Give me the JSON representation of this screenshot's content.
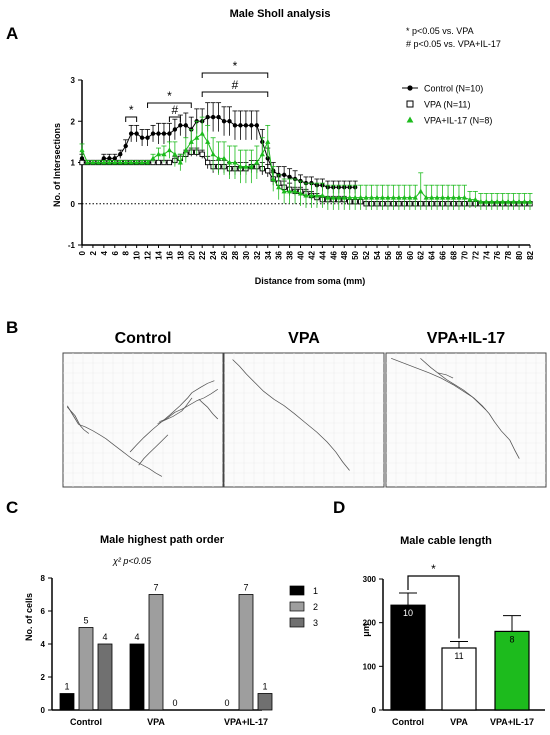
{
  "panels": {
    "a": "A",
    "b": "B",
    "c": "C",
    "d": "D"
  },
  "sholl": {
    "notes": [
      "* p<0.05 vs. VPA",
      "# p<0.05 vs. VPA+IL-17"
    ],
    "sig_star": "*",
    "sig_hash": "#"
  },
  "traces": {
    "labels": [
      "Control",
      "VPA",
      "VPA+IL-17"
    ]
  },
  "colors": {
    "control": "#000000",
    "vpa": "#ffffff",
    "il17": "#1dbb1d",
    "order1": "#000000",
    "order2": "#9e9e9e",
    "order3": "#707070"
  },
  "chart_data": [
    {
      "type": "line",
      "title": "Male Sholl analysis",
      "xlabel": "Distance from soma (mm)",
      "ylabel": "No. of Intersections",
      "ylim": [
        -1,
        3
      ],
      "yticks": [
        -1,
        0,
        1,
        2,
        3
      ],
      "xlim": [
        0,
        82
      ],
      "xticks": [
        0,
        2,
        4,
        6,
        8,
        10,
        12,
        14,
        16,
        18,
        20,
        22,
        24,
        26,
        28,
        30,
        32,
        34,
        36,
        38,
        40,
        42,
        44,
        46,
        48,
        50,
        52,
        54,
        56,
        58,
        60,
        62,
        64,
        66,
        68,
        70,
        72,
        74,
        76,
        78,
        80,
        82
      ],
      "legend_position": "top-right",
      "series": [
        {
          "name": "Control (N=10)",
          "marker": "filled-circle",
          "x": [
            0,
            1,
            2,
            3,
            4,
            5,
            6,
            7,
            8,
            9,
            10,
            11,
            12,
            13,
            14,
            15,
            16,
            17,
            18,
            19,
            20,
            21,
            22,
            23,
            24,
            25,
            26,
            27,
            28,
            29,
            30,
            31,
            32,
            33,
            34,
            35,
            36,
            37,
            38,
            39,
            40,
            41,
            42,
            43,
            44,
            45,
            46,
            47,
            48,
            49,
            50
          ],
          "y": [
            1.1,
            1.0,
            1.0,
            1.0,
            1.1,
            1.1,
            1.1,
            1.2,
            1.4,
            1.7,
            1.7,
            1.6,
            1.6,
            1.7,
            1.7,
            1.7,
            1.7,
            1.8,
            1.9,
            1.9,
            1.8,
            2.0,
            2.0,
            2.1,
            2.1,
            2.1,
            2.0,
            2.0,
            1.9,
            1.9,
            1.9,
            1.9,
            1.9,
            1.5,
            1.1,
            0.8,
            0.7,
            0.7,
            0.65,
            0.6,
            0.55,
            0.5,
            0.5,
            0.45,
            0.45,
            0.4,
            0.4,
            0.4,
            0.4,
            0.4,
            0.4
          ],
          "err": [
            0.1,
            0.05,
            0.05,
            0.05,
            0.1,
            0.1,
            0.1,
            0.1,
            0.15,
            0.2,
            0.2,
            0.2,
            0.2,
            0.2,
            0.25,
            0.25,
            0.25,
            0.25,
            0.25,
            0.3,
            0.3,
            0.3,
            0.3,
            0.35,
            0.35,
            0.35,
            0.35,
            0.35,
            0.35,
            0.35,
            0.35,
            0.35,
            0.35,
            0.3,
            0.25,
            0.2,
            0.2,
            0.2,
            0.2,
            0.2,
            0.15,
            0.15,
            0.15,
            0.15,
            0.15,
            0.15,
            0.15,
            0.15,
            0.15,
            0.15,
            0.15
          ]
        },
        {
          "name": "VPA (N=11)",
          "marker": "open-square",
          "x": [
            0,
            1,
            2,
            3,
            4,
            5,
            6,
            7,
            8,
            9,
            10,
            11,
            12,
            13,
            14,
            15,
            16,
            17,
            18,
            19,
            20,
            21,
            22,
            23,
            24,
            25,
            26,
            27,
            28,
            29,
            30,
            31,
            32,
            33,
            34,
            35,
            36,
            37,
            38,
            39,
            40,
            41,
            42,
            43,
            44,
            45,
            46,
            47,
            48,
            49,
            50,
            51,
            52,
            53,
            54,
            55,
            56,
            57,
            58,
            59,
            60,
            61,
            62,
            63,
            64,
            65,
            66,
            67,
            68,
            69,
            70,
            71,
            72,
            73,
            74,
            75,
            76,
            77,
            78,
            79,
            80,
            81,
            82
          ],
          "y": [
            1.0,
            1.0,
            1.0,
            1.0,
            1.0,
            1.0,
            1.0,
            1.0,
            1.0,
            1.0,
            1.0,
            1.0,
            1.0,
            1.0,
            1.0,
            1.0,
            1.0,
            1.05,
            1.1,
            1.2,
            1.25,
            1.25,
            1.2,
            1.0,
            0.9,
            0.9,
            0.9,
            0.85,
            0.85,
            0.85,
            0.85,
            0.9,
            0.9,
            0.85,
            0.8,
            0.6,
            0.5,
            0.4,
            0.35,
            0.3,
            0.3,
            0.25,
            0.2,
            0.15,
            0.1,
            0.1,
            0.1,
            0.1,
            0.1,
            0.05,
            0.05,
            0.05,
            0.0,
            0.0,
            0.0,
            0.0,
            0.0,
            0.0,
            0.0,
            0.0,
            0.0,
            0.0,
            0.0,
            0.0,
            0.0,
            0.0,
            0.0,
            0.0,
            0.0,
            0.0,
            0.0,
            0.0,
            0.0,
            0.0,
            0.0,
            0.0,
            0.0,
            0.0,
            0.0,
            0.0,
            0.0,
            0.0,
            0.0
          ],
          "err": [
            0.05,
            0.05,
            0.05,
            0.05,
            0.05,
            0.05,
            0.05,
            0.05,
            0.05,
            0.05,
            0.05,
            0.05,
            0.05,
            0.05,
            0.05,
            0.05,
            0.05,
            0.1,
            0.1,
            0.1,
            0.1,
            0.1,
            0.1,
            0.15,
            0.15,
            0.15,
            0.15,
            0.15,
            0.15,
            0.15,
            0.15,
            0.15,
            0.15,
            0.15,
            0.15,
            0.15,
            0.15,
            0.15,
            0.15,
            0.1,
            0.1,
            0.1,
            0.1,
            0.1,
            0.08,
            0.08,
            0.08,
            0.08,
            0.08,
            0.05,
            0.05,
            0.05,
            0.0,
            0.0,
            0.0,
            0.0,
            0.0,
            0.0,
            0.0,
            0.0,
            0.0,
            0.0,
            0.0,
            0.0,
            0.0,
            0.0,
            0.0,
            0.0,
            0.0,
            0.0,
            0.0,
            0.0,
            0.0,
            0.0,
            0.0,
            0.0,
            0.0,
            0.0,
            0.0,
            0.0,
            0.0,
            0.0,
            0.0
          ]
        },
        {
          "name": "VPA+IL-17 (N=8)",
          "marker": "filled-triangle",
          "x": [
            0,
            1,
            2,
            3,
            4,
            5,
            6,
            7,
            8,
            9,
            10,
            11,
            12,
            13,
            14,
            15,
            16,
            17,
            18,
            19,
            20,
            21,
            22,
            23,
            24,
            25,
            26,
            27,
            28,
            29,
            30,
            31,
            32,
            33,
            34,
            35,
            36,
            37,
            38,
            39,
            40,
            41,
            42,
            43,
            44,
            45,
            46,
            47,
            48,
            49,
            50,
            51,
            52,
            53,
            54,
            55,
            56,
            57,
            58,
            59,
            60,
            61,
            62,
            63,
            64,
            65,
            66,
            67,
            68,
            69,
            70,
            71,
            72,
            73,
            74,
            75,
            76,
            77,
            78,
            79,
            80,
            81,
            82
          ],
          "y": [
            1.3,
            1.0,
            1.0,
            1.0,
            1.0,
            1.0,
            1.0,
            1.0,
            1.0,
            1.0,
            1.0,
            1.0,
            1.0,
            1.1,
            1.2,
            1.2,
            1.3,
            1.2,
            1.0,
            1.3,
            1.5,
            1.6,
            1.7,
            1.5,
            1.2,
            1.1,
            1.1,
            1.0,
            1.0,
            0.9,
            0.9,
            0.9,
            1.0,
            1.2,
            1.5,
            0.6,
            0.4,
            0.3,
            0.3,
            0.3,
            0.25,
            0.2,
            0.2,
            0.2,
            0.2,
            0.15,
            0.15,
            0.15,
            0.15,
            0.15,
            0.15,
            0.15,
            0.15,
            0.15,
            0.15,
            0.15,
            0.15,
            0.15,
            0.15,
            0.15,
            0.15,
            0.15,
            0.3,
            0.15,
            0.15,
            0.15,
            0.15,
            0.15,
            0.15,
            0.15,
            0.15,
            0.1,
            0.1,
            0.05,
            0.05,
            0.05,
            0.05,
            0.05,
            0.05,
            0.05,
            0.05,
            0.05,
            0.05
          ],
          "err": [
            0.15,
            0.05,
            0.05,
            0.05,
            0.05,
            0.05,
            0.05,
            0.05,
            0.05,
            0.05,
            0.05,
            0.05,
            0.05,
            0.1,
            0.15,
            0.2,
            0.2,
            0.3,
            0.2,
            0.3,
            0.3,
            0.4,
            0.4,
            0.4,
            0.4,
            0.4,
            0.4,
            0.4,
            0.4,
            0.4,
            0.4,
            0.4,
            0.4,
            0.4,
            0.4,
            0.3,
            0.3,
            0.3,
            0.3,
            0.3,
            0.3,
            0.3,
            0.3,
            0.3,
            0.3,
            0.3,
            0.3,
            0.3,
            0.3,
            0.3,
            0.3,
            0.3,
            0.3,
            0.3,
            0.3,
            0.3,
            0.3,
            0.3,
            0.3,
            0.3,
            0.3,
            0.3,
            0.45,
            0.3,
            0.3,
            0.3,
            0.3,
            0.3,
            0.3,
            0.3,
            0.3,
            0.2,
            0.2,
            0.2,
            0.2,
            0.2,
            0.2,
            0.2,
            0.2,
            0.2,
            0.2,
            0.2,
            0.2
          ]
        }
      ]
    },
    {
      "type": "bar",
      "title": "Male highest path order",
      "subtitle": "χ² p<0.05",
      "xlabel": "",
      "ylabel": "No. of cells",
      "ylim": [
        0,
        8
      ],
      "yticks": [
        0,
        2,
        4,
        6,
        8
      ],
      "categories": [
        "Control",
        "VPA",
        "VPA+IL-17"
      ],
      "series": [
        {
          "name": "1",
          "values": [
            1,
            4,
            0
          ]
        },
        {
          "name": "2",
          "values": [
            5,
            7,
            7
          ]
        },
        {
          "name": "3",
          "values": [
            4,
            0,
            1
          ]
        }
      ],
      "legend_position": "right"
    },
    {
      "type": "bar",
      "title": "Male cable length",
      "xlabel": "",
      "ylabel": "μm",
      "ylim": [
        0,
        300
      ],
      "yticks": [
        0,
        100,
        200,
        300
      ],
      "categories": [
        "Control",
        "VPA",
        "VPA+IL-17"
      ],
      "values": [
        240,
        142,
        180
      ],
      "errors": [
        28,
        15,
        36
      ],
      "n_labels": [
        "10",
        "11",
        "8"
      ],
      "significance": "*"
    }
  ]
}
